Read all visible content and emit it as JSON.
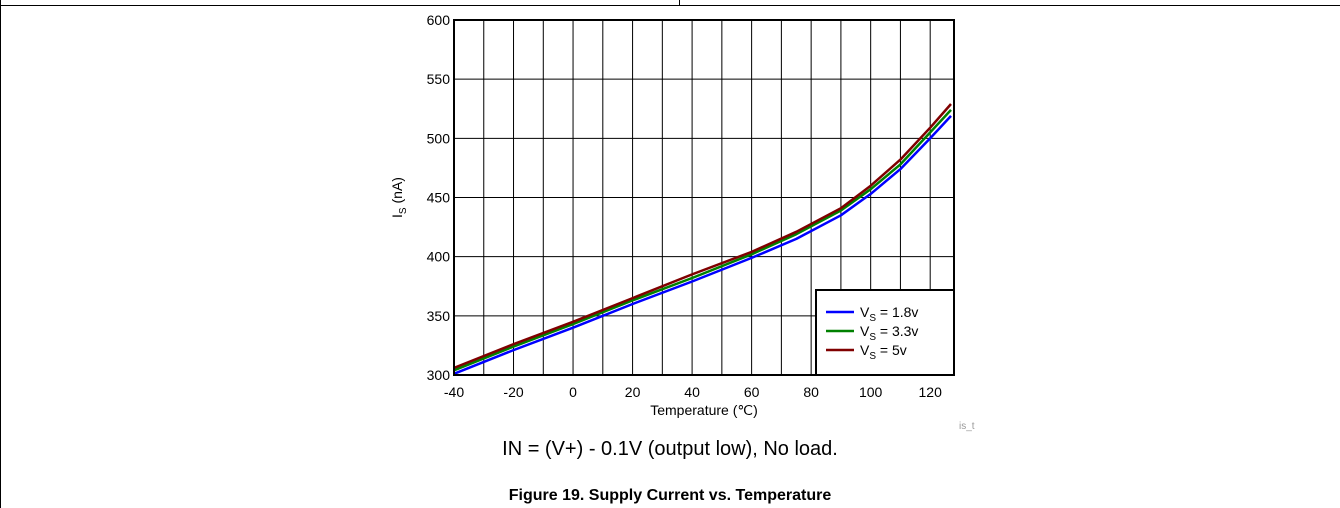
{
  "chart_data": {
    "type": "line",
    "xlabel": "Temperature (℃)",
    "ylabel_main": "I",
    "ylabel_sub": "S",
    "ylabel_tail": " (nA)",
    "xlim": [
      -40,
      128
    ],
    "ylim": [
      300,
      600
    ],
    "x_ticks": [
      -40,
      -20,
      0,
      20,
      40,
      60,
      80,
      100,
      120
    ],
    "y_ticks": [
      300,
      350,
      400,
      450,
      500,
      550,
      600
    ],
    "x_grid": [
      -40,
      -30,
      -20,
      -10,
      0,
      10,
      20,
      30,
      40,
      50,
      60,
      70,
      80,
      90,
      100,
      110,
      120,
      128
    ],
    "grid": true,
    "legend_position": "bottom-right",
    "series": [
      {
        "name_main": "V",
        "name_sub": "S",
        "name_tail": " = 1.8v",
        "color": "#0000ff",
        "x": [
          -40,
          -20,
          0,
          20,
          40,
          60,
          75,
          90,
          100,
          110,
          120,
          127
        ],
        "y": [
          301,
          321,
          340,
          360,
          379,
          399,
          415,
          435,
          453,
          474,
          500,
          519
        ]
      },
      {
        "name_main": "V",
        "name_sub": "S",
        "name_tail": " = 3.3v",
        "color": "#008000",
        "x": [
          -40,
          -20,
          0,
          20,
          40,
          60,
          75,
          90,
          100,
          110,
          120,
          127
        ],
        "y": [
          304,
          324,
          343,
          363,
          382,
          402,
          419,
          439,
          457,
          478,
          505,
          524
        ]
      },
      {
        "name_main": "V",
        "name_sub": "S",
        "name_tail": " = 5v",
        "color": "#800000",
        "x": [
          -40,
          -20,
          0,
          20,
          40,
          60,
          75,
          90,
          100,
          110,
          120,
          127
        ],
        "y": [
          306,
          326,
          345,
          365,
          385,
          404,
          421,
          441,
          460,
          482,
          509,
          529
        ]
      }
    ]
  },
  "condition_text": "IN = (V+) - 0.1V (output low), No load.",
  "caption": "Figure 19. Supply Current vs. Temperature",
  "watermark": "is_t"
}
